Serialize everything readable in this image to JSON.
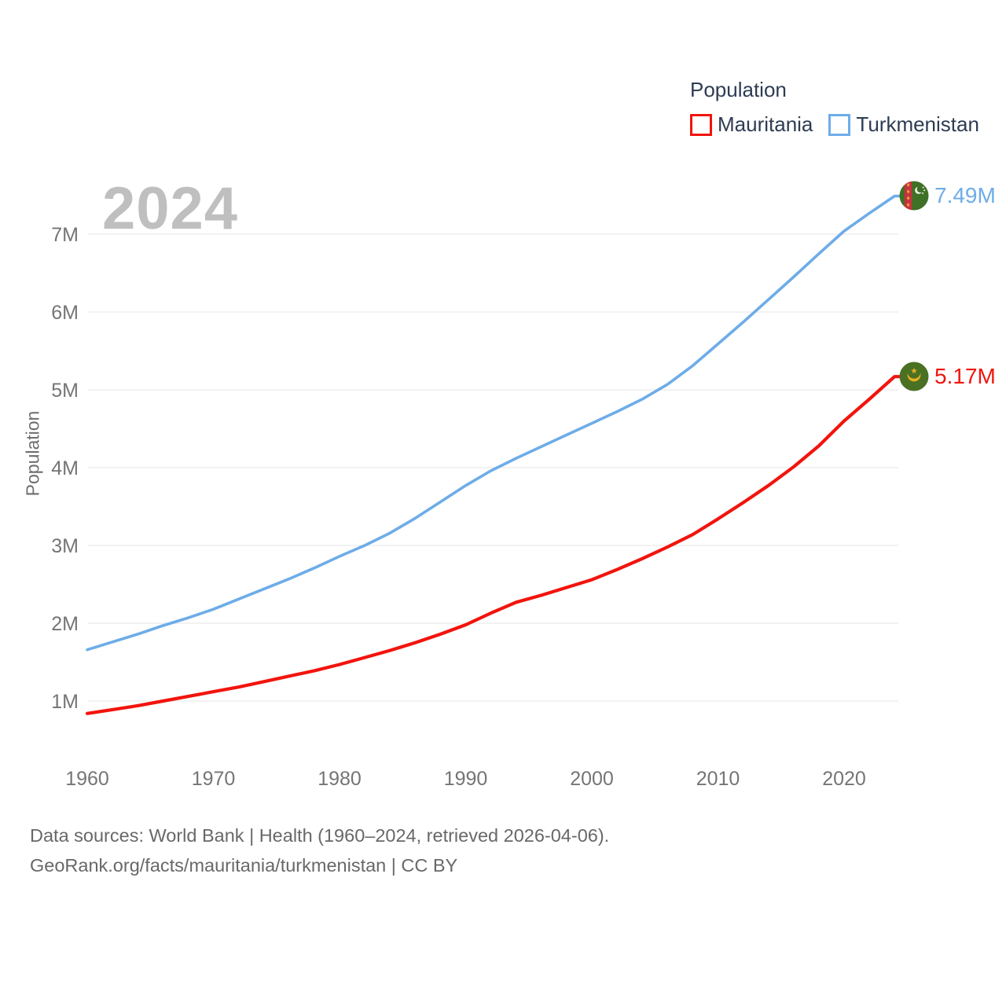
{
  "colors": {
    "grid": "#ebebeb",
    "tick": "#757575",
    "text_dark": "#2d3c52",
    "watermark": "#bfbfbf",
    "footer": "#686868",
    "mauritania_red": "#f2140d",
    "turkmenistan_blue": "#6dace8"
  },
  "legend": {
    "title": "Population",
    "items": [
      {
        "label": "Mauritania",
        "color": "#f2140d"
      },
      {
        "label": "Turkmenistan",
        "color": "#6dace8"
      }
    ]
  },
  "y_axis": {
    "title": "Population",
    "ticks": [
      "1M",
      "2M",
      "3M",
      "4M",
      "5M",
      "6M",
      "7M"
    ],
    "tick_values": [
      1,
      2,
      3,
      4,
      5,
      6,
      7
    ]
  },
  "x_axis": {
    "ticks": [
      "1960",
      "1970",
      "1980",
      "1990",
      "2000",
      "2010",
      "2020"
    ],
    "tick_values": [
      1960,
      1970,
      1980,
      1990,
      2000,
      2010,
      2020
    ]
  },
  "chart_data": {
    "type": "line",
    "watermark": "2024",
    "title": "Population",
    "xlabel": "",
    "ylabel": "Population",
    "xlim": [
      1960,
      2024
    ],
    "ylim": [
      1,
      7.6
    ],
    "grid": true,
    "legend_position": "top-right",
    "units": "millions",
    "x": [
      1960,
      1962,
      1964,
      1966,
      1968,
      1970,
      1972,
      1974,
      1976,
      1978,
      1980,
      1982,
      1984,
      1986,
      1988,
      1990,
      1992,
      1994,
      1996,
      1998,
      2000,
      2002,
      2004,
      2006,
      2008,
      2010,
      2012,
      2014,
      2016,
      2018,
      2020,
      2022,
      2024
    ],
    "series": [
      {
        "name": "Mauritania",
        "color": "#f2140d",
        "end_label": "5.17M",
        "flag": "mauritania-flag-icon",
        "values": [
          0.84,
          0.89,
          0.94,
          1.0,
          1.06,
          1.12,
          1.18,
          1.25,
          1.32,
          1.39,
          1.47,
          1.56,
          1.65,
          1.75,
          1.86,
          1.98,
          2.13,
          2.27,
          2.36,
          2.46,
          2.56,
          2.69,
          2.83,
          2.98,
          3.14,
          3.34,
          3.55,
          3.77,
          4.01,
          4.28,
          4.6,
          4.88,
          5.17
        ]
      },
      {
        "name": "Turkmenistan",
        "color": "#6dace8",
        "end_label": "7.49M",
        "flag": "turkmenistan-flag-icon",
        "values": [
          1.66,
          1.76,
          1.86,
          1.97,
          2.07,
          2.18,
          2.31,
          2.44,
          2.57,
          2.71,
          2.86,
          3.0,
          3.16,
          3.35,
          3.56,
          3.77,
          3.96,
          4.12,
          4.27,
          4.42,
          4.57,
          4.72,
          4.88,
          5.07,
          5.31,
          5.59,
          5.87,
          6.16,
          6.45,
          6.75,
          7.04,
          7.27,
          7.49
        ]
      }
    ]
  },
  "footer": {
    "line1": "Data sources: World Bank | Health (1960–2024, retrieved 2026-04-06).",
    "line2": "GeoRank.org/facts/mauritania/turkmenistan | CC BY"
  }
}
